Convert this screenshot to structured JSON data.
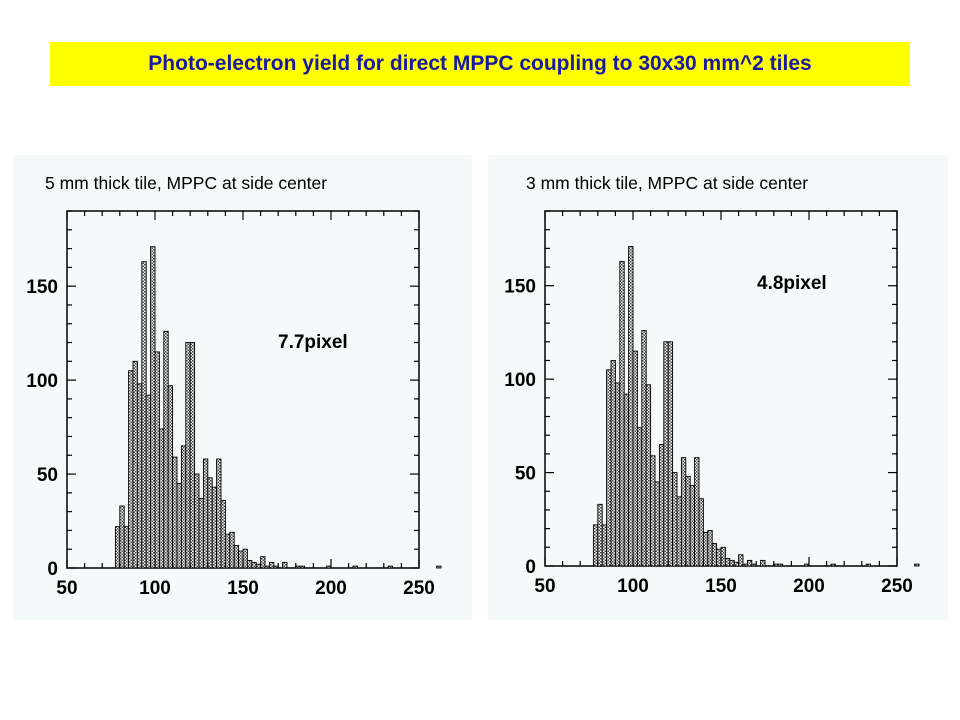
{
  "header": {
    "title": "Photo-electron yield for direct MPPC coupling to 30x30 mm^2 tiles"
  },
  "colors": {
    "title_background": "#ffff00",
    "title_text": "#1a1aa0",
    "panel_background": "#f6f9f9",
    "bar_fill": "#c8c8c8"
  },
  "chart_data": [
    {
      "type": "bar",
      "title": "5 mm thick tile, MPPC at side center",
      "annotation": "7.7pixel",
      "xlabel": "",
      "ylabel": "",
      "xlim": [
        50,
        250
      ],
      "ylim": [
        0,
        190
      ],
      "xticks": [
        "50",
        "100",
        "150",
        "200",
        "250"
      ],
      "yticks": [
        "0",
        "50",
        "100",
        "150"
      ],
      "bin_width": 2.5,
      "bin_start": 77.5,
      "values": [
        22,
        33,
        22,
        105,
        110,
        98,
        163,
        92,
        171,
        115,
        74,
        126,
        97,
        59,
        45,
        65,
        120,
        120,
        50,
        37,
        58,
        48,
        43,
        58,
        36,
        18,
        19,
        12,
        9,
        10,
        4,
        3,
        2,
        6,
        1,
        3,
        1,
        0,
        3,
        0,
        0,
        1,
        1,
        0,
        0,
        0,
        0,
        0,
        1,
        0,
        0,
        0,
        0,
        0,
        1,
        0,
        0,
        0,
        0,
        0,
        0,
        0,
        1,
        0,
        0,
        0,
        0,
        0,
        0,
        0,
        0,
        0,
        0,
        1
      ]
    },
    {
      "type": "bar",
      "title": "3 mm thick tile, MPPC at side center",
      "annotation": "4.8pixel",
      "xlabel": "",
      "ylabel": "",
      "xlim": [
        50,
        250
      ],
      "ylim": [
        0,
        190
      ],
      "xticks": [
        "50",
        "100",
        "150",
        "200",
        "250"
      ],
      "yticks": [
        "0",
        "50",
        "100",
        "150"
      ],
      "bin_width": 2.5,
      "bin_start": 77.5,
      "values": [
        22,
        33,
        22,
        105,
        110,
        98,
        163,
        92,
        171,
        115,
        74,
        126,
        97,
        59,
        45,
        65,
        120,
        120,
        50,
        37,
        58,
        48,
        43,
        58,
        36,
        18,
        19,
        12,
        9,
        10,
        4,
        3,
        2,
        6,
        1,
        3,
        1,
        0,
        3,
        0,
        0,
        1,
        1,
        0,
        0,
        0,
        0,
        0,
        1,
        0,
        0,
        0,
        0,
        0,
        1,
        0,
        0,
        0,
        0,
        0,
        0,
        0,
        1,
        0,
        0,
        0,
        0,
        0,
        0,
        0,
        0,
        0,
        0,
        1
      ]
    }
  ]
}
